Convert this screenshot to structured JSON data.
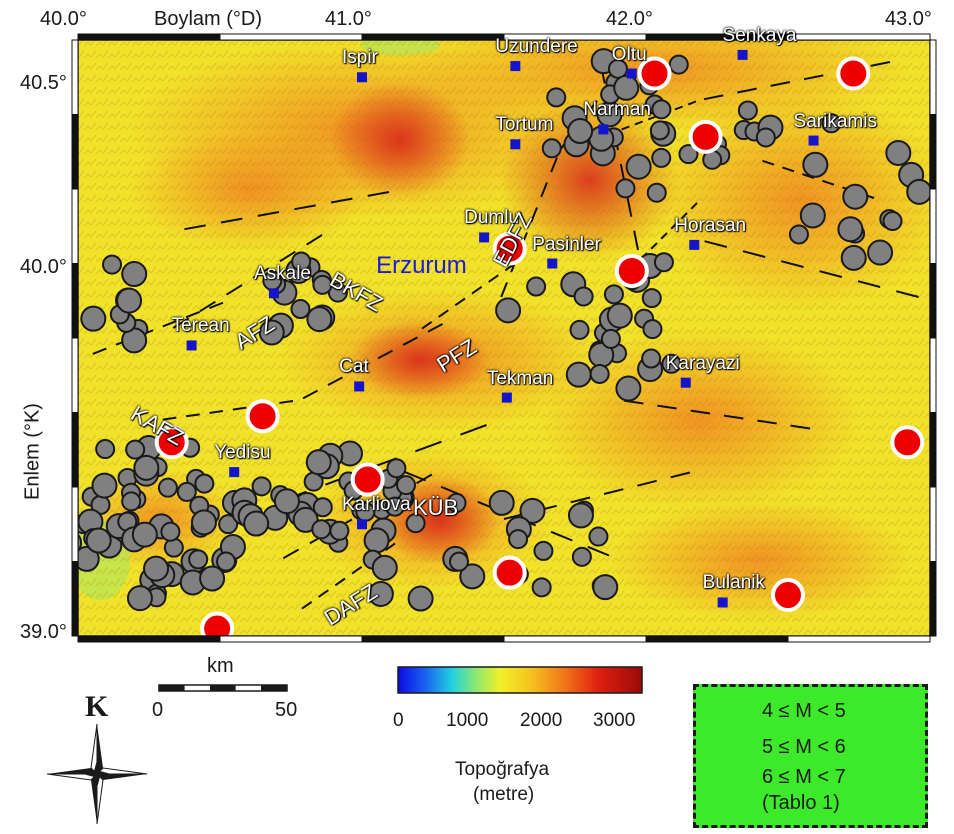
{
  "map": {
    "x_axis_title": "Boylam (°D)",
    "y_axis_title": "Enlem (°K)",
    "lon_ticks": [
      "40.0°",
      "41.0°",
      "42.0°",
      "43.0°"
    ],
    "lat_ticks": [
      "40.5°",
      "40.0°",
      "39.0°"
    ],
    "lon_range": [
      40.0,
      43.0
    ],
    "lat_range": [
      39.0,
      40.6
    ],
    "title_of_center_city": "Erzurum"
  },
  "towns": [
    {
      "name": "Ispir",
      "lon": 41.0,
      "lat": 40.5
    },
    {
      "name": "Uzundere",
      "lon": 41.54,
      "lat": 40.53
    },
    {
      "name": "Oltu",
      "lon": 41.95,
      "lat": 40.51
    },
    {
      "name": "Senkaya",
      "lon": 42.34,
      "lat": 40.56
    },
    {
      "name": "Tortum",
      "lon": 41.54,
      "lat": 40.32
    },
    {
      "name": "Narman",
      "lon": 41.85,
      "lat": 40.36
    },
    {
      "name": "Sarikamis",
      "lon": 42.59,
      "lat": 40.33
    },
    {
      "name": "Dumlu",
      "lon": 41.43,
      "lat": 40.07
    },
    {
      "name": "Horasan",
      "lon": 42.17,
      "lat": 40.05
    },
    {
      "name": "Pasinler",
      "lon": 41.67,
      "lat": 40.0
    },
    {
      "name": "Askale",
      "lon": 40.69,
      "lat": 39.92
    },
    {
      "name": "Erzurum",
      "lon": 41.12,
      "lat": 39.95
    },
    {
      "name": "Terean",
      "lon": 40.4,
      "lat": 39.78
    },
    {
      "name": "Cat",
      "lon": 40.99,
      "lat": 39.67
    },
    {
      "name": "Tekman",
      "lon": 41.51,
      "lat": 39.64
    },
    {
      "name": "Karayazi",
      "lon": 42.14,
      "lat": 39.68
    },
    {
      "name": "Yedisu",
      "lon": 40.55,
      "lat": 39.44
    },
    {
      "name": "Karliova",
      "lon": 41.0,
      "lat": 39.3
    },
    {
      "name": "Bulanik",
      "lon": 42.27,
      "lat": 39.09
    }
  ],
  "fault_labels": [
    {
      "name": "EDFZ",
      "lon": 41.5,
      "lat": 40.06,
      "rot": -62
    },
    {
      "name": "BKFZ",
      "lon": 40.95,
      "lat": 39.92,
      "rot": 30
    },
    {
      "name": "AFZ",
      "lon": 40.62,
      "lat": 39.81,
      "rot": -32
    },
    {
      "name": "PFZ",
      "lon": 41.33,
      "lat": 39.75,
      "rot": -32
    },
    {
      "name": "KAFZ",
      "lon": 40.25,
      "lat": 39.56,
      "rot": 30
    },
    {
      "name": "KÜB",
      "lon": 41.25,
      "lat": 39.34,
      "rot": 0
    },
    {
      "name": "DAFZ",
      "lon": 40.93,
      "lat": 39.08,
      "rot": -32
    }
  ],
  "earthquakes_large": [
    {
      "lon": 42.03,
      "lat": 40.51
    },
    {
      "lon": 42.73,
      "lat": 40.51
    },
    {
      "lon": 42.21,
      "lat": 40.34
    },
    {
      "lon": 41.52,
      "lat": 40.04
    },
    {
      "lon": 41.95,
      "lat": 39.98
    },
    {
      "lon": 40.65,
      "lat": 39.59
    },
    {
      "lon": 40.33,
      "lat": 39.52
    },
    {
      "lon": 41.02,
      "lat": 39.42
    },
    {
      "lon": 42.92,
      "lat": 39.52
    },
    {
      "lon": 41.52,
      "lat": 39.17
    },
    {
      "lon": 42.5,
      "lat": 39.11
    },
    {
      "lon": 40.49,
      "lat": 39.02
    }
  ],
  "earthquakes_medium_count": 210,
  "scale_bar": {
    "title": "km",
    "min_label": "0",
    "max_label": "50"
  },
  "north_arrow": {
    "label": "K"
  },
  "colorbar": {
    "ticks": [
      "0",
      "1000",
      "2000",
      "3000"
    ],
    "title_line1": "Topoğrafya",
    "title_line2": "(metre)",
    "range": [
      0,
      3300
    ]
  },
  "legend": {
    "row1": "4 ≤ M < 5",
    "row2": "5 ≤ M < 6",
    "row3": "6 ≤ M < 7",
    "row3b": "(Tablo 1)"
  },
  "colors": {
    "quake_small_fill": "#808080",
    "quake_large_fill": "#ee0000",
    "town_marker": "#1414cc",
    "legend_bg": "#3dea2a",
    "city_label": "#1a1ae0"
  }
}
